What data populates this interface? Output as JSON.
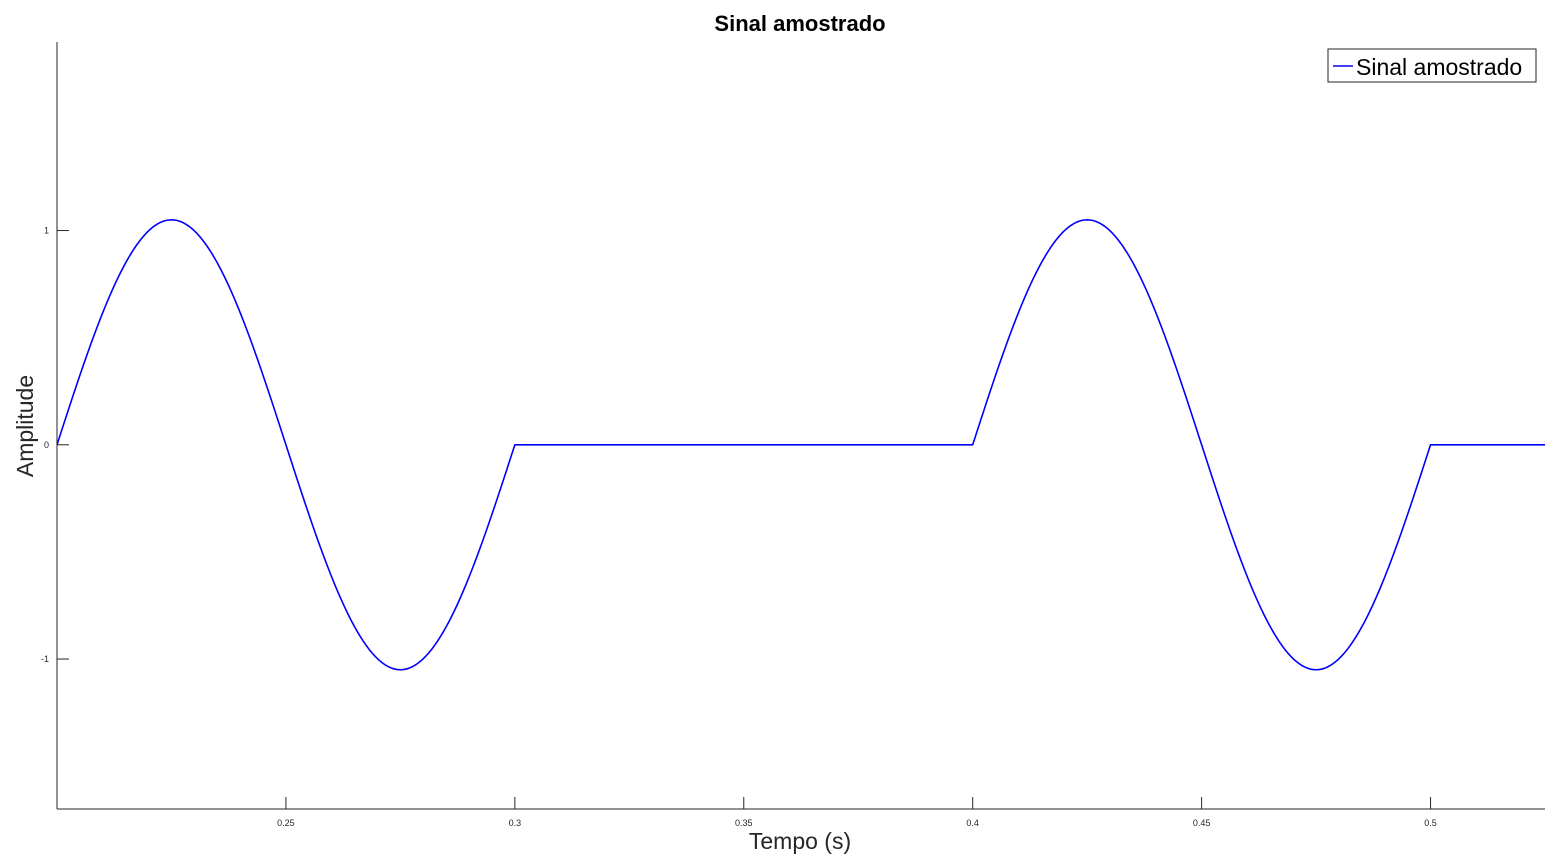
{
  "chart_data": {
    "type": "line",
    "title": "Sinal amostrado",
    "xlabel": "Tempo (s)",
    "ylabel": "Amplitude",
    "xlim": [
      0.2,
      0.525
    ],
    "ylim": [
      -1.7,
      1.88
    ],
    "grid": false,
    "legend_position": "top-right",
    "x_ticks": [
      0.25,
      0.3,
      0.35,
      0.4,
      0.45,
      0.5
    ],
    "x_tick_labels": [
      "0.25",
      "0.3",
      "0.35",
      "0.4",
      "0.45",
      "0.5"
    ],
    "y_ticks": [
      -1,
      0,
      1
    ],
    "y_tick_labels": [
      "-1",
      "0",
      "1"
    ],
    "series": [
      {
        "name": "Sinal amostrado",
        "color": "#0000ff",
        "frequency_hz": 10,
        "amplitude": 1.05,
        "segments": [
          {
            "type": "sine",
            "x_start": 0.2,
            "x_end": 0.3
          },
          {
            "type": "zero",
            "x_start": 0.3,
            "x_end": 0.4
          },
          {
            "type": "sine",
            "x_start": 0.4,
            "x_end": 0.5
          },
          {
            "type": "zero",
            "x_start": 0.5,
            "x_end": 0.525
          }
        ],
        "points": [
          {
            "x": 0.2,
            "y": 0.0
          },
          {
            "x": 0.2125,
            "y": 0.742
          },
          {
            "x": 0.225,
            "y": 1.05
          },
          {
            "x": 0.2375,
            "y": 0.742
          },
          {
            "x": 0.25,
            "y": 0.0
          },
          {
            "x": 0.2625,
            "y": -0.742
          },
          {
            "x": 0.275,
            "y": -1.05
          },
          {
            "x": 0.2875,
            "y": -0.742
          },
          {
            "x": 0.3,
            "y": 0.0
          },
          {
            "x": 0.4,
            "y": 0.0
          },
          {
            "x": 0.4125,
            "y": 0.742
          },
          {
            "x": 0.425,
            "y": 1.05
          },
          {
            "x": 0.4375,
            "y": 0.742
          },
          {
            "x": 0.45,
            "y": 0.0
          },
          {
            "x": 0.4625,
            "y": -0.742
          },
          {
            "x": 0.475,
            "y": -1.05
          },
          {
            "x": 0.4875,
            "y": -0.742
          },
          {
            "x": 0.5,
            "y": 0.0
          },
          {
            "x": 0.525,
            "y": 0.0
          }
        ]
      }
    ]
  }
}
